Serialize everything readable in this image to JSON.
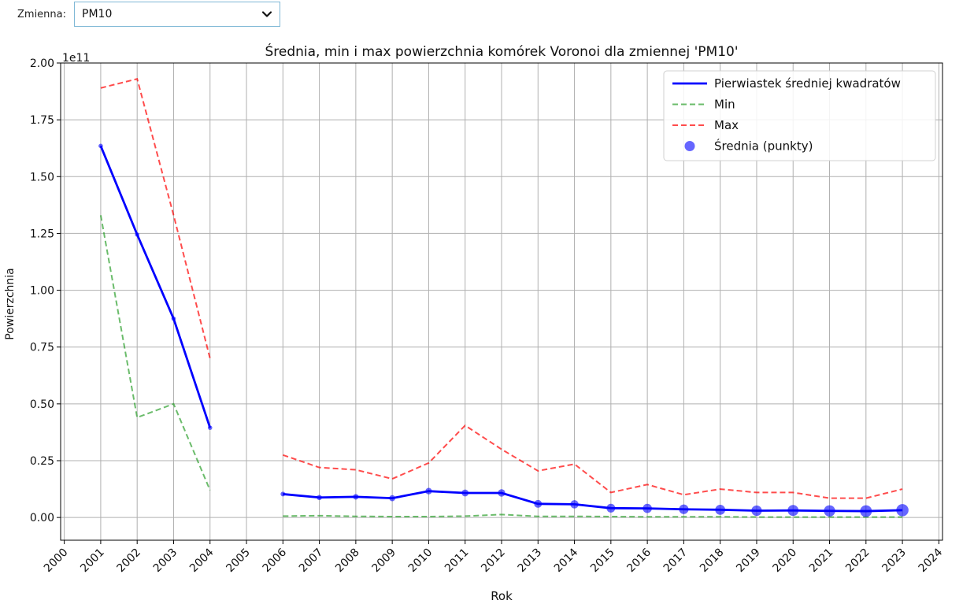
{
  "control": {
    "label": "Zmienna:",
    "value": "PM10"
  },
  "chart_data": {
    "type": "line",
    "title": "Średnia, min i max powierzchnia komórek Voronoi dla zmiennej 'PM10'",
    "xlabel": "Rok",
    "ylabel": "Powierzchnia",
    "y_offset_label": "1e11",
    "x_ticks": [
      2000,
      2001,
      2002,
      2003,
      2004,
      2005,
      2006,
      2007,
      2008,
      2009,
      2010,
      2011,
      2012,
      2013,
      2014,
      2015,
      2016,
      2017,
      2018,
      2019,
      2020,
      2021,
      2022,
      2023,
      2024
    ],
    "y_ticks": [
      "0.00",
      "0.25",
      "0.50",
      "0.75",
      "1.00",
      "1.25",
      "1.50",
      "1.75",
      "2.00"
    ],
    "y_tick_values": [
      0,
      0.25,
      0.5,
      0.75,
      1.0,
      1.25,
      1.5,
      1.75,
      2.0
    ],
    "xlim": [
      1999.9,
      2024.1
    ],
    "ylim": [
      -0.1,
      2.0
    ],
    "grid": true,
    "legend_position": "top-right",
    "segments": [
      [
        2001,
        2002,
        2003,
        2004
      ],
      [
        2006,
        2007,
        2008,
        2009,
        2010,
        2011,
        2012,
        2013,
        2014,
        2015,
        2016,
        2017,
        2018,
        2019,
        2020,
        2021,
        2022,
        2023
      ]
    ],
    "series": [
      {
        "name": "Pierwiastek średniej kwadratów",
        "style": "solid",
        "color": "#0000ff",
        "values": [
          [
            1.635,
            1.245,
            0.875,
            0.395
          ],
          [
            0.103,
            0.088,
            0.091,
            0.085,
            0.116,
            0.108,
            0.108,
            0.06,
            0.058,
            0.041,
            0.04,
            0.036,
            0.034,
            0.03,
            0.031,
            0.029,
            0.028,
            0.032
          ]
        ]
      },
      {
        "name": "Min",
        "style": "dashed",
        "color": "#2ca02c",
        "values": [
          [
            1.33,
            0.44,
            0.5,
            0.12
          ],
          [
            0.006,
            0.008,
            0.005,
            0.004,
            0.004,
            0.006,
            0.013,
            0.005,
            0.005,
            0.004,
            0.003,
            0.003,
            0.003,
            0.002,
            0.002,
            0.002,
            0.002,
            0.002
          ]
        ]
      },
      {
        "name": "Max",
        "style": "dashed",
        "color": "#ff0000",
        "values": [
          [
            1.89,
            1.93,
            1.33,
            0.7
          ],
          [
            0.275,
            0.22,
            0.21,
            0.17,
            0.24,
            0.405,
            0.3,
            0.205,
            0.235,
            0.11,
            0.145,
            0.1,
            0.125,
            0.11,
            0.11,
            0.085,
            0.085,
            0.125
          ]
        ]
      },
      {
        "name": "Średnia (punkty)",
        "style": "scatter",
        "color": "#0000ff",
        "values": [
          [
            1.635,
            1.245,
            0.875,
            0.395
          ],
          [
            0.103,
            0.088,
            0.091,
            0.085,
            0.116,
            0.108,
            0.108,
            0.06,
            0.058,
            0.041,
            0.04,
            0.036,
            0.034,
            0.03,
            0.031,
            0.029,
            0.028,
            0.032
          ]
        ]
      }
    ]
  }
}
